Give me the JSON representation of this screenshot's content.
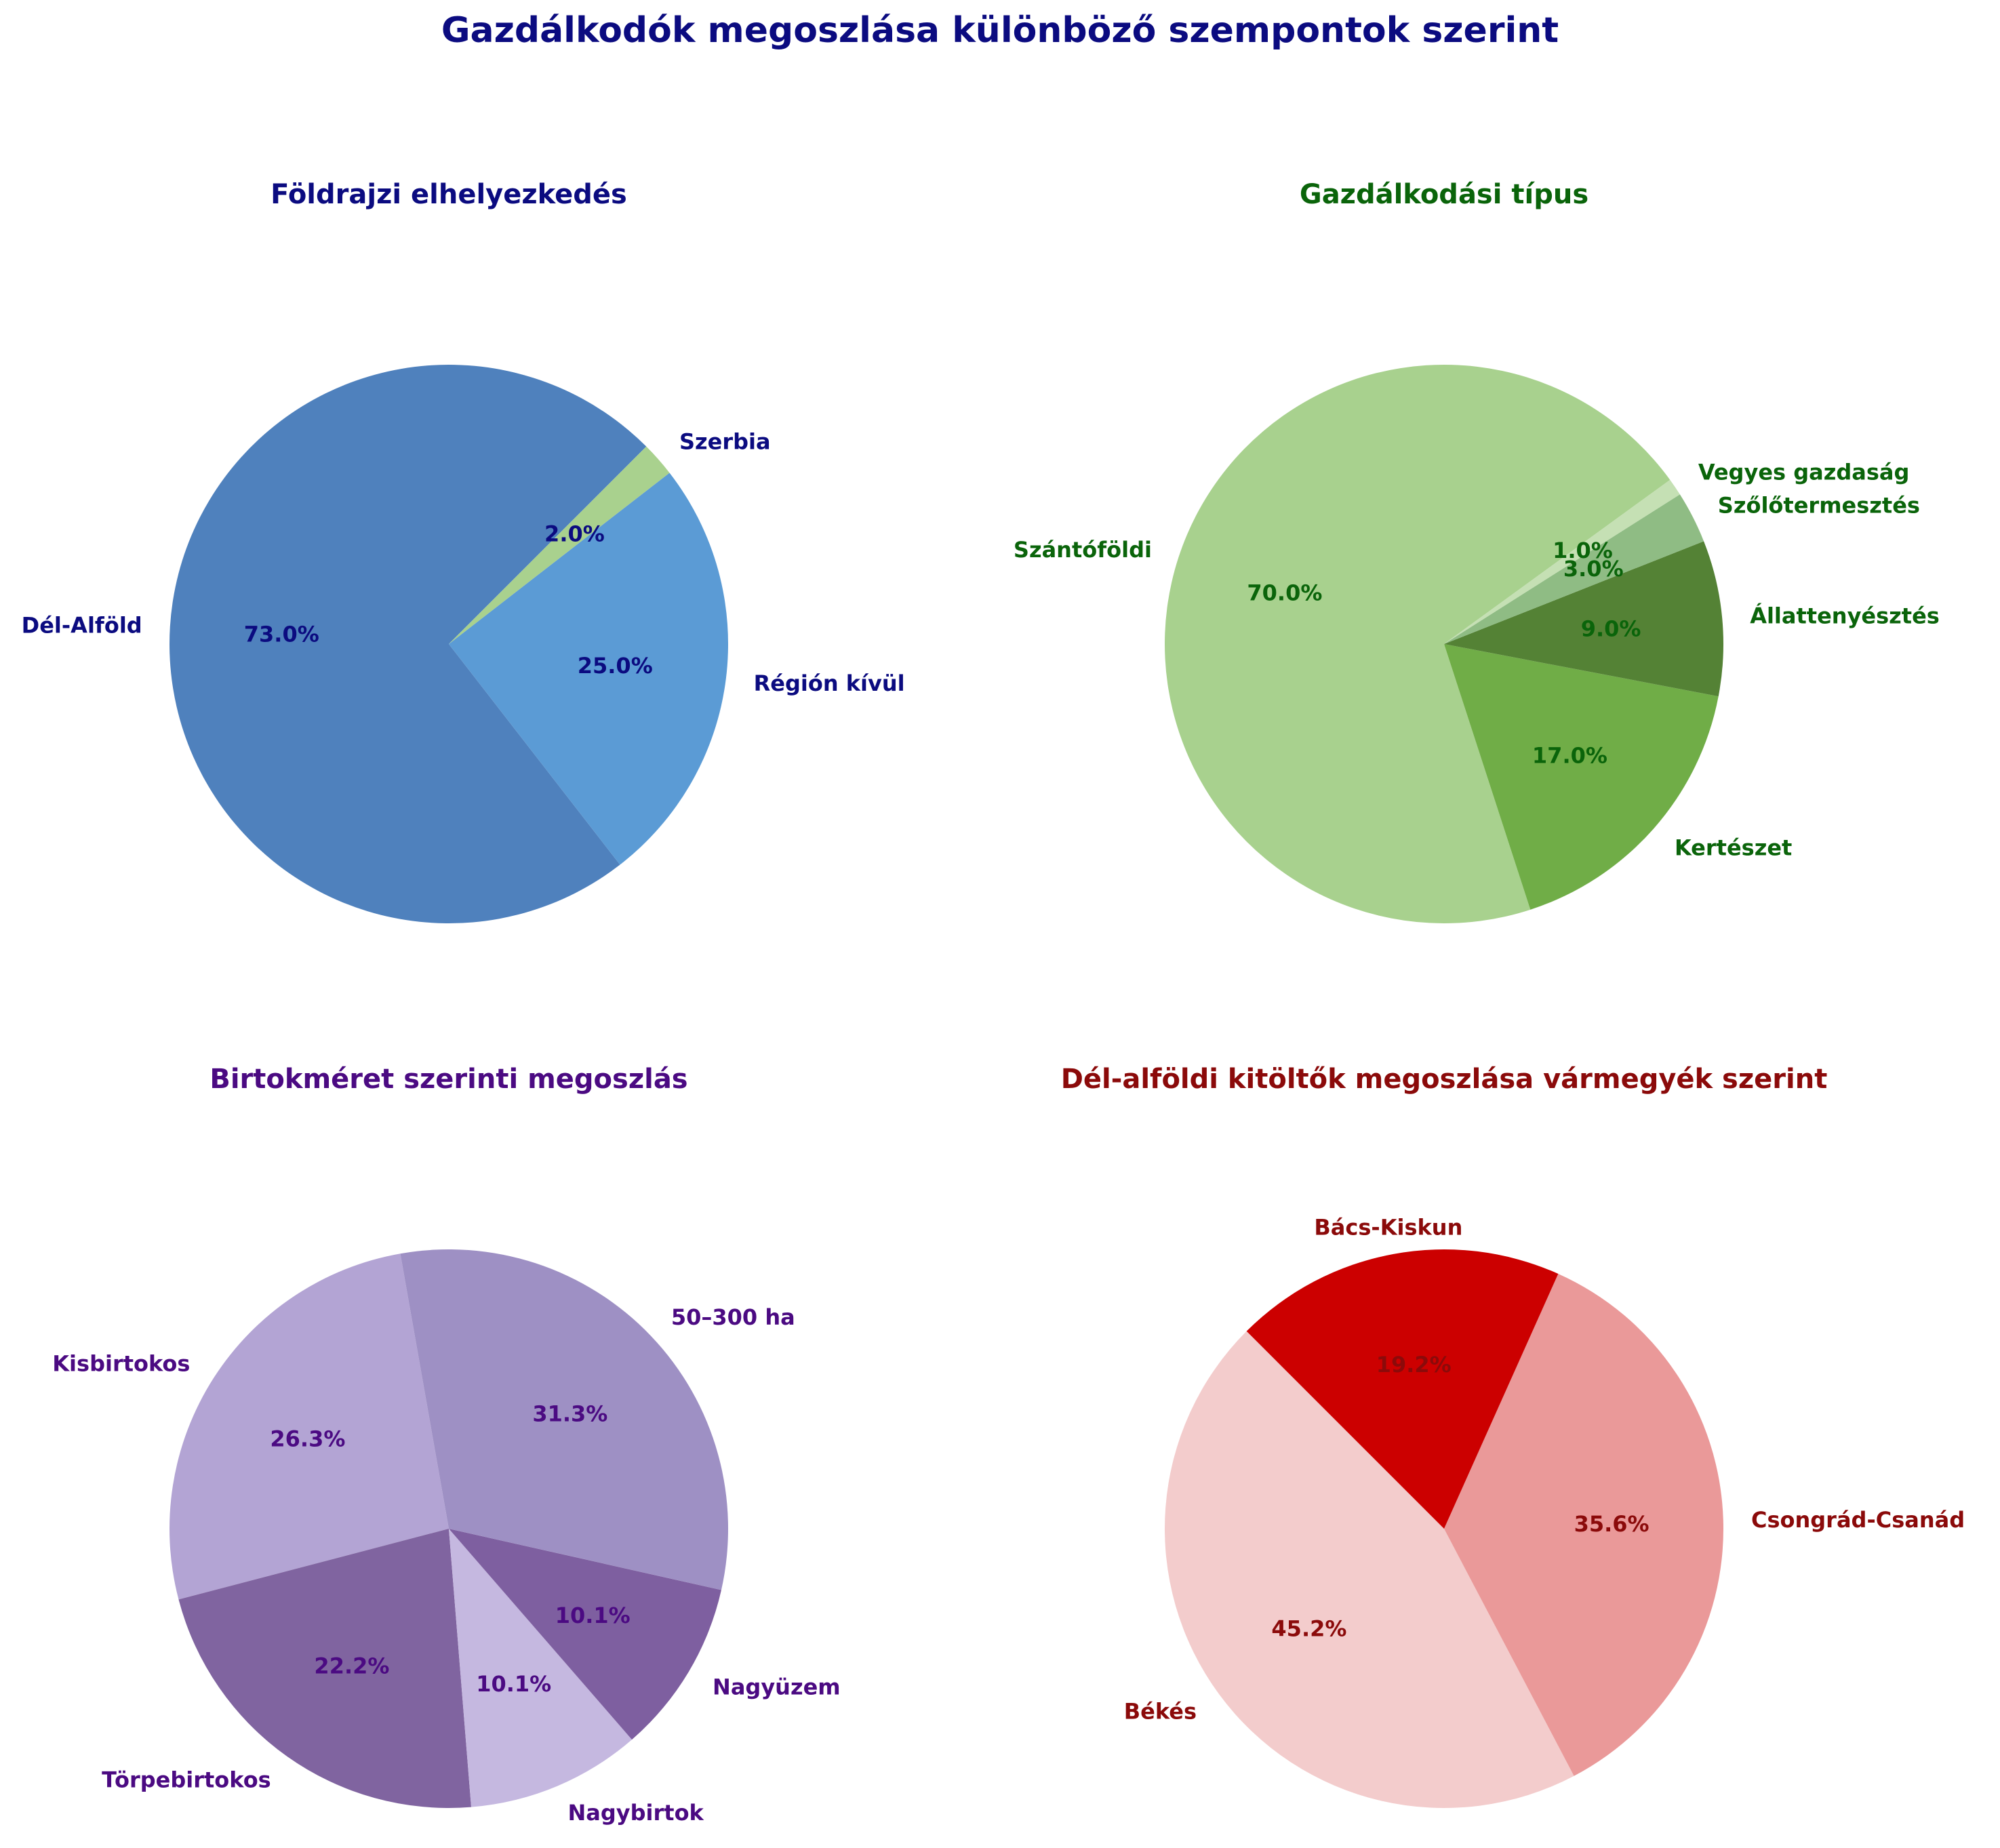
{
  "main_title": "Gazdálkodók megoszlása különböző szempontok szerint",
  "chart_data": [
    {
      "type": "pie",
      "title": "Földrajzi elhelyezkedés",
      "title_color": "#0b0b80",
      "label_color": "#0b0b80",
      "labels": [
        "Dél-Alföld",
        "Régión kívül",
        "Szerbia"
      ],
      "values": [
        73.0,
        25.0,
        2.0
      ],
      "percent_labels": [
        "73.0%",
        "25.0%",
        "2.0%"
      ],
      "colors": [
        "#4f81bd",
        "#5b9bd5",
        "#a9d18e"
      ]
    },
    {
      "type": "pie",
      "title": "Gazdálkodási típus",
      "title_color": "#0a640a",
      "label_color": "#0a640a",
      "labels": [
        "Szántóföldi",
        "Kertészet",
        "Állattenyésztés",
        "Szőlőtermesztés",
        "Vegyes gazdaság"
      ],
      "values": [
        70.0,
        17.0,
        9.0,
        3.0,
        1.0
      ],
      "percent_labels": [
        "70.0%",
        "17.0%",
        "9.0%",
        "3.0%",
        "1.0%"
      ],
      "colors": [
        "#a8d18e",
        "#70ad47",
        "#548235",
        "#8fbc84",
        "#c5e0b4"
      ]
    },
    {
      "type": "pie",
      "title": "Birtokméret szerinti megoszlás",
      "title_color": "#4b0a82",
      "label_color": "#4b0a82",
      "labels": [
        "Kisbirtokos",
        "Törpebirtokos",
        "Nagybirtok",
        "Nagyüzem",
        "50–300 ha"
      ],
      "values": [
        26.3,
        22.2,
        10.1,
        10.1,
        31.3
      ],
      "percent_labels": [
        "26.3%",
        "22.2%",
        "10.1%",
        "10.1%",
        "31.3%"
      ],
      "colors": [
        "#b3a4d4",
        "#8064a0",
        "#c5b8e0",
        "#7e5fa0",
        "#9e90c4"
      ]
    },
    {
      "type": "pie",
      "title": "Dél-alföldi kitöltők megoszlása vármegyék szerint",
      "title_color": "#8b0a0a",
      "label_color": "#8b0a0a",
      "labels": [
        "Békés",
        "Csongrád-Csanád",
        "Bács-Kiskun"
      ],
      "values": [
        45.2,
        35.6,
        19.2
      ],
      "percent_labels": [
        "45.2%",
        "35.6%",
        "19.2%"
      ],
      "colors": [
        "#f3cccc",
        "#ea9999",
        "#cc0000"
      ]
    }
  ]
}
